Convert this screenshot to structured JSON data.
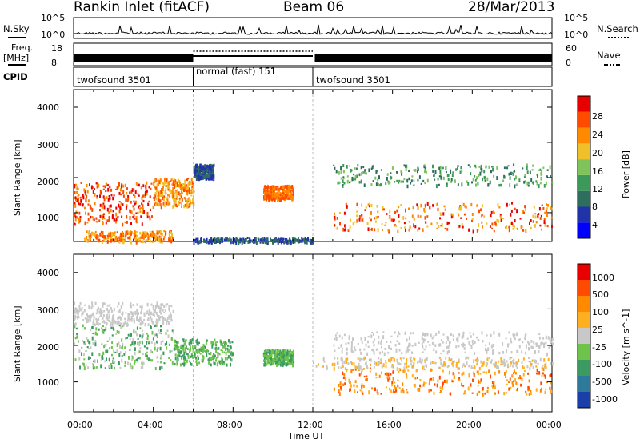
{
  "header": {
    "site": "Rankin Inlet (fitACF)",
    "beam": "Beam 06",
    "date": "28/Mar/2013"
  },
  "noise_panel": {
    "left_label": "N.Sky",
    "right_label": "N.Search",
    "left_ticks": [
      "10^5",
      "10^0"
    ],
    "right_ticks": [
      "10^5",
      "10^0"
    ]
  },
  "freq_panel": {
    "left_label_1": "Freq.",
    "left_label_2": "[MHz]",
    "left_ticks": [
      "18",
      "8"
    ],
    "right_label": "Nave",
    "right_ticks": [
      "60",
      "0"
    ]
  },
  "cpid_panel": {
    "label": "CPID",
    "modes": [
      {
        "name": "twofsound 3501"
      },
      {
        "name": "normal (fast) 151"
      },
      {
        "name": "twofsound 3501"
      }
    ]
  },
  "chart_data": [
    {
      "type": "heatmap",
      "quantity": "Power",
      "ylabel": "Slant Range [km]",
      "xlabel": "",
      "y_ticks": [
        "4000",
        "3000",
        "2000",
        "1000"
      ],
      "y_tick_values": [
        4000,
        3000,
        2000,
        1000
      ],
      "ylim": [
        180,
        4500
      ],
      "xlim_hours": [
        0,
        24
      ],
      "colorbar": {
        "label": "Power [dB]",
        "ticks": [
          "28",
          "24",
          "20",
          "16",
          "12",
          "8",
          "4"
        ],
        "colors": [
          "#0000ff",
          "#2233aa",
          "#2e6e5e",
          "#3b9a5a",
          "#7ec45a",
          "#f0c02a",
          "#ff8a00",
          "#ff4b00",
          "#e80000"
        ]
      }
    },
    {
      "type": "heatmap",
      "quantity": "Velocity",
      "ylabel": "Slant Range [km]",
      "xlabel": "Time UT",
      "y_ticks": [
        "4000",
        "3000",
        "2000",
        "1000"
      ],
      "y_tick_values": [
        4000,
        3000,
        2000,
        1000
      ],
      "ylim": [
        180,
        4500
      ],
      "x_ticks": [
        "00:00",
        "04:00",
        "08:00",
        "12:00",
        "16:00",
        "20:00",
        "00:00"
      ],
      "x_tick_hours": [
        0,
        4,
        8,
        12,
        16,
        20,
        24
      ],
      "xlim_hours": [
        0,
        24
      ],
      "colorbar": {
        "label": "Velocity [m s^-1]",
        "ticks": [
          "1000",
          "500",
          "100",
          "25",
          "-25",
          "-100",
          "-500",
          "-1000"
        ],
        "colors": [
          "#1a3fa8",
          "#2e7a9a",
          "#3a9a62",
          "#6ec44a",
          "#c8c8c8",
          "#ffb020",
          "#ff8a00",
          "#ff4b00",
          "#e80000"
        ]
      }
    }
  ]
}
